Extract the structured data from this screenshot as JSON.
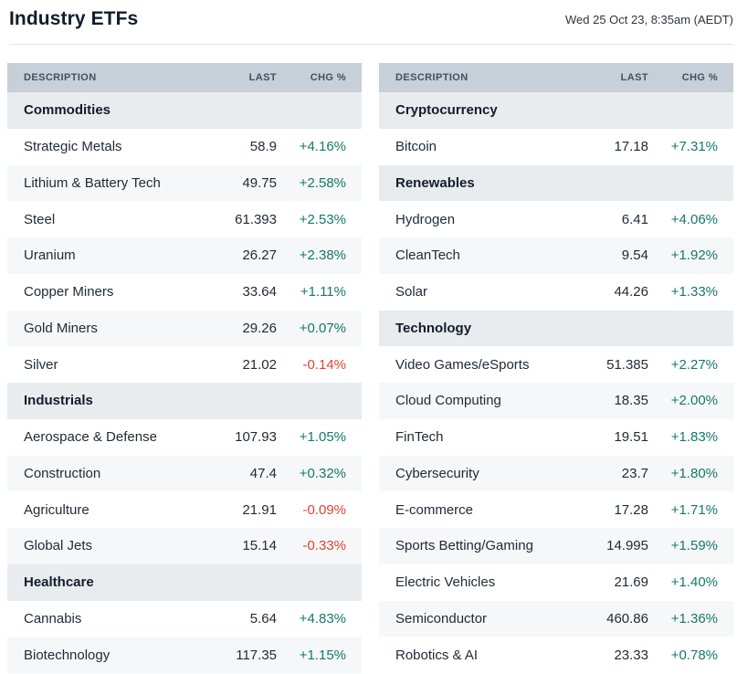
{
  "header": {
    "title": "Industry ETFs",
    "timestamp": "Wed 25 Oct 23, 8:35am (AEDT)"
  },
  "columns": {
    "description": "DESCRIPTION",
    "last": "LAST",
    "chg": "CHG %"
  },
  "colors": {
    "positive_change": "#16786a",
    "negative_change": "#e2422f",
    "column_header_bg": "#c7cfd8",
    "section_header_bg": "#e9ecef",
    "row_stripe_bg": "#f6f7f8"
  },
  "tables": [
    {
      "sections": [
        {
          "name": "Commodities",
          "rows": [
            {
              "description": "Strategic Metals",
              "last": "58.9",
              "chg": "+4.16%"
            },
            {
              "description": "Lithium & Battery Tech",
              "last": "49.75",
              "chg": "+2.58%"
            },
            {
              "description": "Steel",
              "last": "61.393",
              "chg": "+2.53%"
            },
            {
              "description": "Uranium",
              "last": "26.27",
              "chg": "+2.38%"
            },
            {
              "description": "Copper Miners",
              "last": "33.64",
              "chg": "+1.11%"
            },
            {
              "description": "Gold Miners",
              "last": "29.26",
              "chg": "+0.07%"
            },
            {
              "description": "Silver",
              "last": "21.02",
              "chg": "-0.14%"
            }
          ]
        },
        {
          "name": "Industrials",
          "rows": [
            {
              "description": "Aerospace & Defense",
              "last": "107.93",
              "chg": "+1.05%"
            },
            {
              "description": "Construction",
              "last": "47.4",
              "chg": "+0.32%"
            },
            {
              "description": "Agriculture",
              "last": "21.91",
              "chg": "-0.09%"
            },
            {
              "description": "Global Jets",
              "last": "15.14",
              "chg": "-0.33%"
            }
          ]
        },
        {
          "name": "Healthcare",
          "rows": [
            {
              "description": "Cannabis",
              "last": "5.64",
              "chg": "+4.83%"
            },
            {
              "description": "Biotechnology",
              "last": "117.35",
              "chg": "+1.15%"
            }
          ]
        }
      ]
    },
    {
      "sections": [
        {
          "name": "Cryptocurrency",
          "rows": [
            {
              "description": "Bitcoin",
              "last": "17.18",
              "chg": "+7.31%"
            }
          ]
        },
        {
          "name": "Renewables",
          "rows": [
            {
              "description": "Hydrogen",
              "last": "6.41",
              "chg": "+4.06%"
            },
            {
              "description": "CleanTech",
              "last": "9.54",
              "chg": "+1.92%"
            },
            {
              "description": "Solar",
              "last": "44.26",
              "chg": "+1.33%"
            }
          ]
        },
        {
          "name": "Technology",
          "rows": [
            {
              "description": "Video Games/eSports",
              "last": "51.385",
              "chg": "+2.27%"
            },
            {
              "description": "Cloud Computing",
              "last": "18.35",
              "chg": "+2.00%"
            },
            {
              "description": "FinTech",
              "last": "19.51",
              "chg": "+1.83%"
            },
            {
              "description": "Cybersecurity",
              "last": "23.7",
              "chg": "+1.80%"
            },
            {
              "description": "E-commerce",
              "last": "17.28",
              "chg": "+1.71%"
            },
            {
              "description": "Sports Betting/Gaming",
              "last": "14.995",
              "chg": "+1.59%"
            },
            {
              "description": "Electric Vehicles",
              "last": "21.69",
              "chg": "+1.40%"
            },
            {
              "description": "Semiconductor",
              "last": "460.86",
              "chg": "+1.36%"
            },
            {
              "description": "Robotics & AI",
              "last": "23.33",
              "chg": "+0.78%"
            }
          ]
        }
      ]
    }
  ]
}
